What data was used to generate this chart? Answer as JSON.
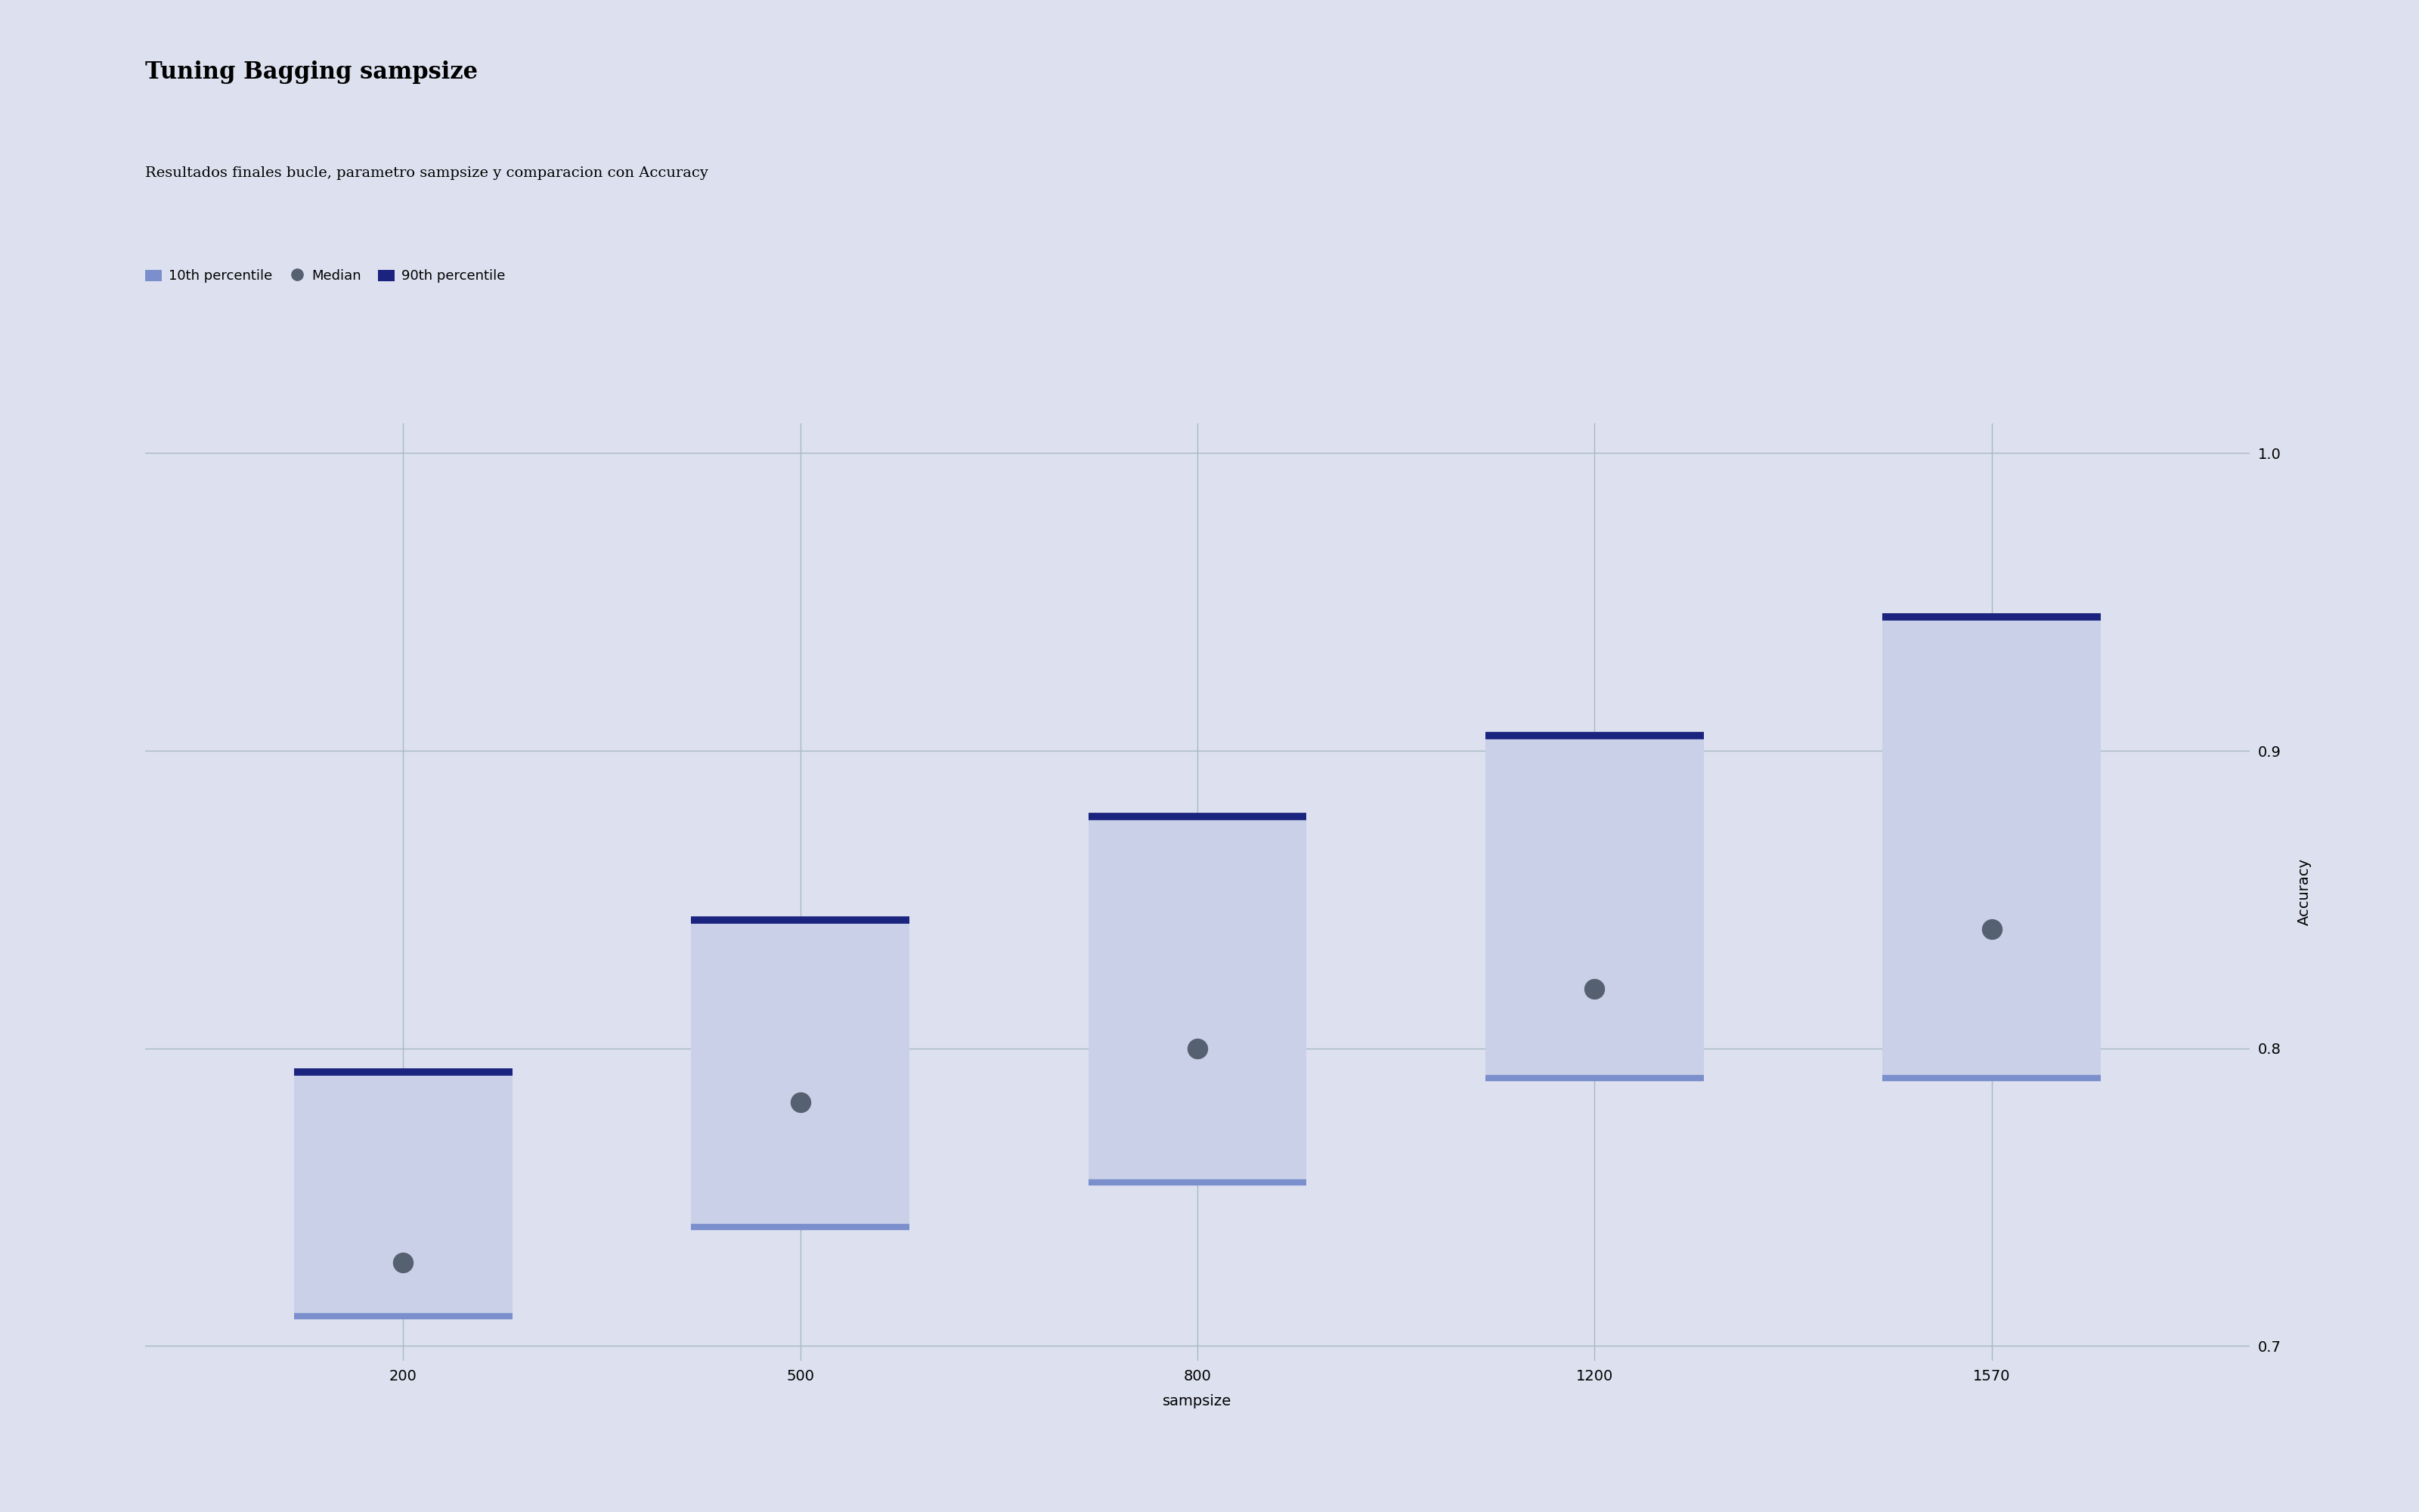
{
  "title": "Tuning Bagging sampsize",
  "subtitle": "Resultados finales bucle, parametro sampsize y comparacion con Accuracy",
  "xlabel": "sampsize",
  "ylabel": "Accuracy",
  "background_color": "#dde1ef",
  "grid_color": "#a8b8c4",
  "categories": [
    200,
    500,
    800,
    1200,
    1570
  ],
  "percentile_10": [
    0.71,
    0.74,
    0.755,
    0.79,
    0.79
  ],
  "median": [
    0.728,
    0.782,
    0.8,
    0.82,
    0.84
  ],
  "percentile_90": [
    0.792,
    0.843,
    0.878,
    0.905,
    0.945
  ],
  "bar_color": "#c9d0e8",
  "p10_line_color": "#7b8fcc",
  "p90_line_color": "#1a237e",
  "median_color": "#556070",
  "ylim": [
    0.695,
    1.01
  ],
  "yticks": [
    0.7,
    0.8,
    0.9,
    1.0
  ],
  "bar_width": 0.55,
  "title_fontsize": 22,
  "subtitle_fontsize": 14,
  "tick_fontsize": 14,
  "label_fontsize": 14,
  "legend_fontsize": 13
}
